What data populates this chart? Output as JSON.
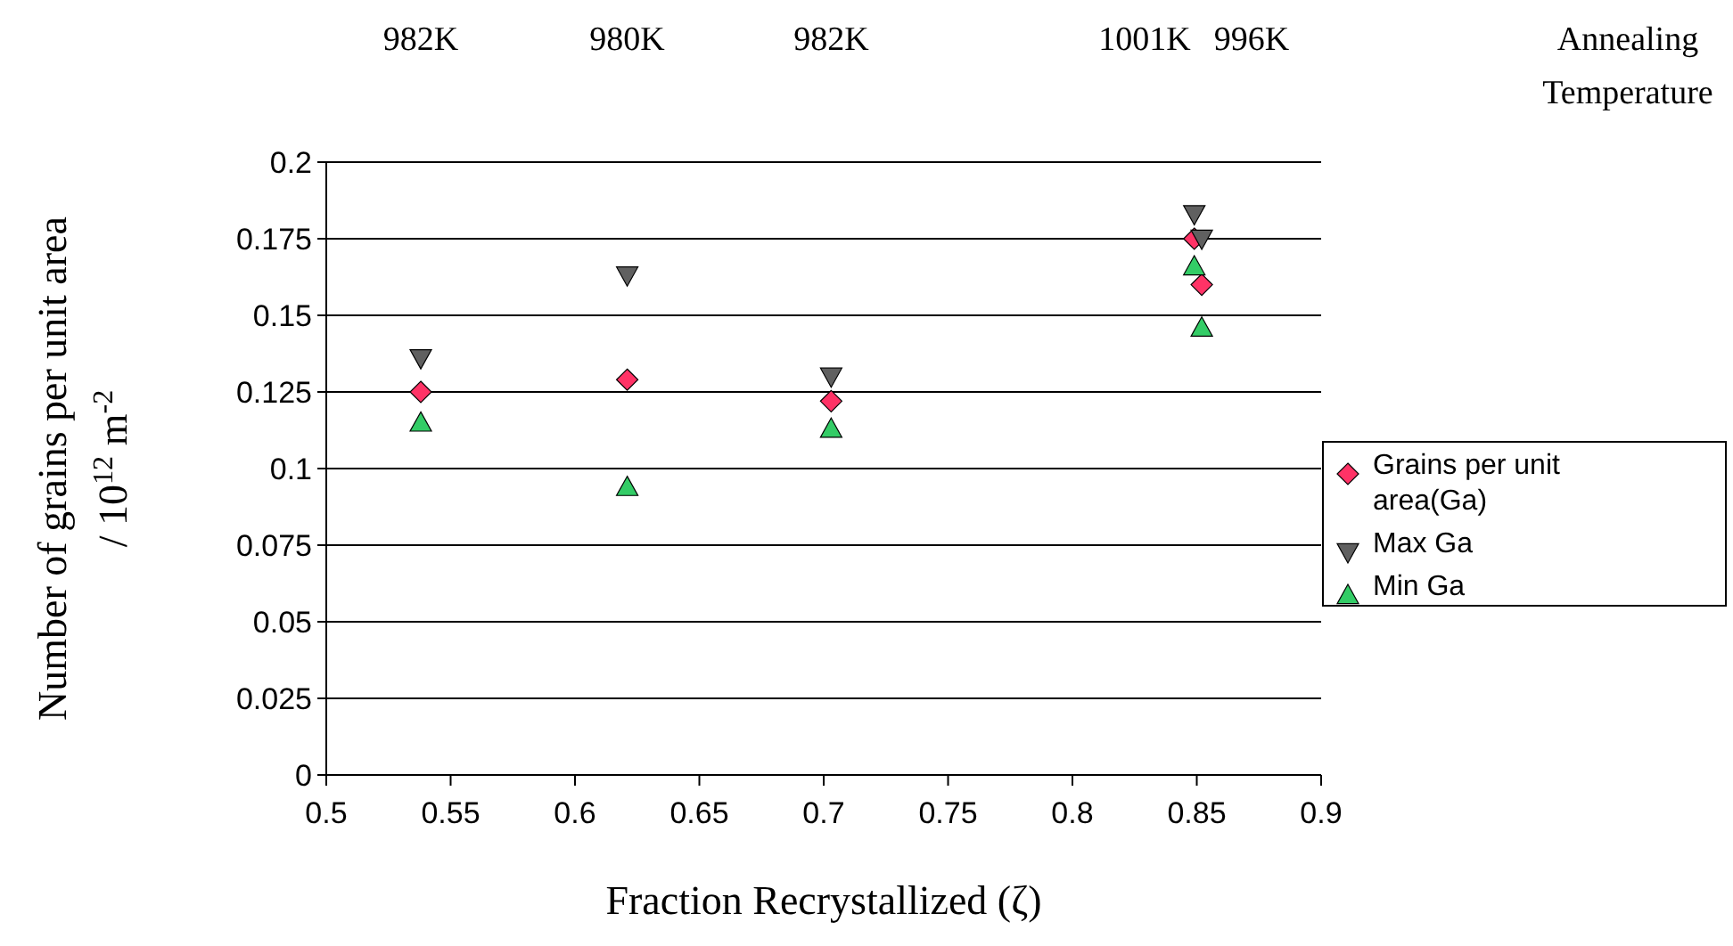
{
  "chart_data": {
    "type": "scatter",
    "xlabel": "Fraction Recrystallized (ζ)",
    "ylabel": "Number of grains per unit area\n/ 10$^{12}$ m$^{-2}$",
    "x": [
      0.538,
      0.621,
      0.703,
      0.849,
      0.852
    ],
    "series": [
      {
        "name": "Grains per unit area(Ga)",
        "color": "#ff3366",
        "marker": "diamond",
        "values": [
          0.125,
          0.129,
          0.122,
          0.175,
          0.16
        ]
      },
      {
        "name": "Max Ga",
        "color": "#606060",
        "marker": "triangle-down",
        "values": [
          0.136,
          0.163,
          0.13,
          0.183,
          0.175
        ]
      },
      {
        "name": "Min Ga",
        "color": "#33cc66",
        "marker": "triangle",
        "values": [
          0.115,
          0.094,
          0.113,
          0.166,
          0.146
        ]
      }
    ],
    "xlim": [
      0.5,
      0.9
    ],
    "xticks": [
      0.5,
      0.55,
      0.6,
      0.65,
      0.7,
      0.75,
      0.8,
      0.85,
      0.9
    ],
    "ylim": [
      0,
      0.2
    ],
    "yticks": [
      0,
      0.025,
      0.05,
      0.075,
      0.1,
      0.125,
      0.15,
      0.175,
      0.2
    ],
    "grid": "y",
    "legend": "right",
    "annotations": [
      "982K",
      "980K",
      "982K",
      "1001K",
      "996K",
      "Annealing Temperature"
    ]
  }
}
